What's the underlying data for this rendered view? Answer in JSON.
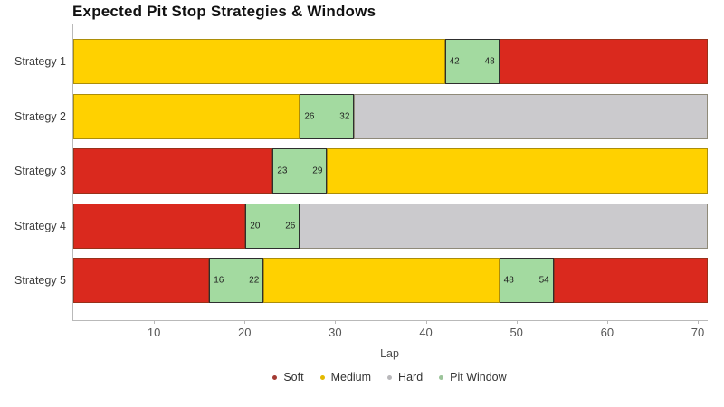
{
  "chart_data": {
    "type": "bar",
    "variant": "horizontal-stacked-timeline",
    "title": "Expected Pit Stop Strategies & Windows",
    "xlabel": "Lap",
    "xlim": [
      1,
      71
    ],
    "xticks": [
      10,
      20,
      30,
      40,
      50,
      60,
      70
    ],
    "categories": [
      "Strategy 1",
      "Strategy 2",
      "Strategy 3",
      "Strategy 4",
      "Strategy 5"
    ],
    "colors": {
      "Soft": "#da291e",
      "Medium": "#ffd100",
      "Hard": "#cbcacd",
      "Pit Window": "#a3daa0"
    },
    "rows": [
      {
        "label": "Strategy 1",
        "segments": [
          {
            "kind": "Medium",
            "from": 1,
            "to": 42
          },
          {
            "kind": "Pit Window",
            "from": 42,
            "to": 48
          },
          {
            "kind": "Soft",
            "from": 48,
            "to": 71
          }
        ]
      },
      {
        "label": "Strategy 2",
        "segments": [
          {
            "kind": "Medium",
            "from": 1,
            "to": 26
          },
          {
            "kind": "Pit Window",
            "from": 26,
            "to": 32
          },
          {
            "kind": "Hard",
            "from": 32,
            "to": 71
          }
        ]
      },
      {
        "label": "Strategy 3",
        "segments": [
          {
            "kind": "Soft",
            "from": 1,
            "to": 23
          },
          {
            "kind": "Pit Window",
            "from": 23,
            "to": 29
          },
          {
            "kind": "Medium",
            "from": 29,
            "to": 71
          }
        ]
      },
      {
        "label": "Strategy 4",
        "segments": [
          {
            "kind": "Soft",
            "from": 1,
            "to": 20
          },
          {
            "kind": "Pit Window",
            "from": 20,
            "to": 26
          },
          {
            "kind": "Hard",
            "from": 26,
            "to": 71
          }
        ]
      },
      {
        "label": "Strategy 5",
        "segments": [
          {
            "kind": "Soft",
            "from": 1,
            "to": 16
          },
          {
            "kind": "Pit Window",
            "from": 16,
            "to": 22
          },
          {
            "kind": "Medium",
            "from": 22,
            "to": 48
          },
          {
            "kind": "Pit Window",
            "from": 48,
            "to": 54
          },
          {
            "kind": "Soft",
            "from": 54,
            "to": 71
          }
        ]
      }
    ],
    "legend": [
      {
        "label": "Soft",
        "color": "#a33a33"
      },
      {
        "label": "Medium",
        "color": "#e3b900"
      },
      {
        "label": "Hard",
        "color": "#b9b8bb"
      },
      {
        "label": "Pit Window",
        "color": "#9cc49a"
      }
    ]
  }
}
